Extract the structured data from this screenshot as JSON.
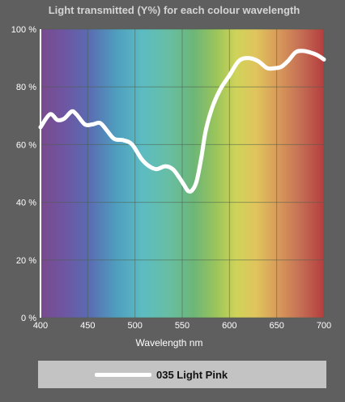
{
  "chart_data": {
    "type": "line",
    "title": "Light transmitted (Y%) for each colour wavelength",
    "xlabel": "Wavelength nm",
    "ylabel": "",
    "xlim": [
      400,
      700
    ],
    "ylim": [
      0,
      100
    ],
    "x_ticks": [
      "400",
      "450",
      "500",
      "550",
      "600",
      "650",
      "700"
    ],
    "y_ticks": [
      "0 %",
      "20 %",
      "40 %",
      "60 %",
      "80 %",
      "100 %"
    ],
    "grid": true,
    "legend_position": "bottom",
    "series": [
      {
        "name": "035 Light Pink",
        "color": "#ffffff",
        "x": [
          400,
          410,
          418,
          425,
          433,
          438,
          447,
          455,
          463,
          470,
          478,
          488,
          497,
          507,
          515,
          523,
          532,
          540,
          547,
          552,
          556,
          560,
          565,
          570,
          575,
          582,
          590,
          600,
          610,
          620,
          630,
          640,
          648,
          655,
          662,
          670,
          677,
          685,
          693,
          700
        ],
        "y": [
          66,
          70.5,
          68.5,
          69,
          71.5,
          70.5,
          67,
          67,
          67.5,
          65,
          62,
          61.5,
          60,
          55,
          52.5,
          51.5,
          52.5,
          51.5,
          48.5,
          46,
          44,
          44,
          47,
          55,
          65,
          73,
          79,
          84,
          89,
          90,
          89,
          86.5,
          86.5,
          87,
          89,
          92,
          92.5,
          92,
          91,
          89.5
        ]
      }
    ]
  },
  "legend": {
    "label": "035 Light Pink"
  }
}
